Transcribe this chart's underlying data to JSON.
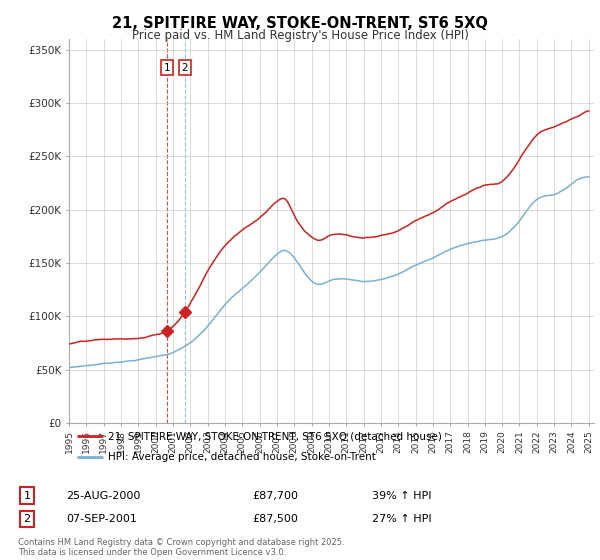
{
  "title": "21, SPITFIRE WAY, STOKE-ON-TRENT, ST6 5XQ",
  "subtitle": "Price paid vs. HM Land Registry's House Price Index (HPI)",
  "ylim": [
    0,
    360000
  ],
  "yticks": [
    0,
    50000,
    100000,
    150000,
    200000,
    250000,
    300000,
    350000
  ],
  "ytick_labels": [
    "£0",
    "£50K",
    "£100K",
    "£150K",
    "£200K",
    "£250K",
    "£300K",
    "£350K"
  ],
  "hpi_color": "#7bafd4",
  "price_color": "#cc2222",
  "sale1_date_num": 2000.65,
  "sale1_price": 87700,
  "sale2_date_num": 2001.69,
  "sale2_price": 87500,
  "legend_label_price": "21, SPITFIRE WAY, STOKE-ON-TRENT, ST6 5XQ (detached house)",
  "legend_label_hpi": "HPI: Average price, detached house, Stoke-on-Trent",
  "table_row1": [
    "1",
    "25-AUG-2000",
    "£87,700",
    "39% ↑ HPI"
  ],
  "table_row2": [
    "2",
    "07-SEP-2001",
    "£87,500",
    "27% ↑ HPI"
  ],
  "footnote": "Contains HM Land Registry data © Crown copyright and database right 2025.\nThis data is licensed under the Open Government Licence v3.0.",
  "background_color": "#ffffff",
  "grid_color": "#cccccc",
  "hpi_keypoints_x": [
    1995,
    1996,
    1997,
    1998,
    1999,
    2000,
    2001,
    2002,
    2003,
    2004,
    2005,
    2006,
    2007,
    2007.5,
    2008,
    2009,
    2009.5,
    2010,
    2011,
    2012,
    2013,
    2014,
    2015,
    2016,
    2017,
    2018,
    2019,
    2020,
    2021,
    2022,
    2023,
    2024,
    2025
  ],
  "hpi_keypoints_y": [
    51000,
    53000,
    55000,
    57000,
    59000,
    62000,
    66000,
    75000,
    90000,
    110000,
    125000,
    140000,
    158000,
    162000,
    155000,
    133000,
    130000,
    133000,
    135000,
    133000,
    135000,
    140000,
    148000,
    155000,
    163000,
    168000,
    172000,
    175000,
    190000,
    210000,
    215000,
    225000,
    232000
  ],
  "price_keypoints_x": [
    1995,
    1996,
    1997,
    1998,
    1999,
    2000,
    2001,
    2002,
    2003,
    2004,
    2005,
    2006,
    2007,
    2007.5,
    2008,
    2009,
    2009.5,
    2010,
    2011,
    2012,
    2013,
    2014,
    2015,
    2016,
    2017,
    2018,
    2019,
    2020,
    2021,
    2022,
    2023,
    2024,
    2025
  ],
  "price_keypoints_y": [
    73000,
    75000,
    76000,
    76500,
    77000,
    80000,
    88000,
    110000,
    140000,
    165000,
    180000,
    192000,
    208000,
    210000,
    195000,
    175000,
    172000,
    176000,
    177000,
    174000,
    177000,
    182000,
    192000,
    200000,
    210000,
    218000,
    225000,
    228000,
    248000,
    270000,
    278000,
    285000,
    293000
  ]
}
